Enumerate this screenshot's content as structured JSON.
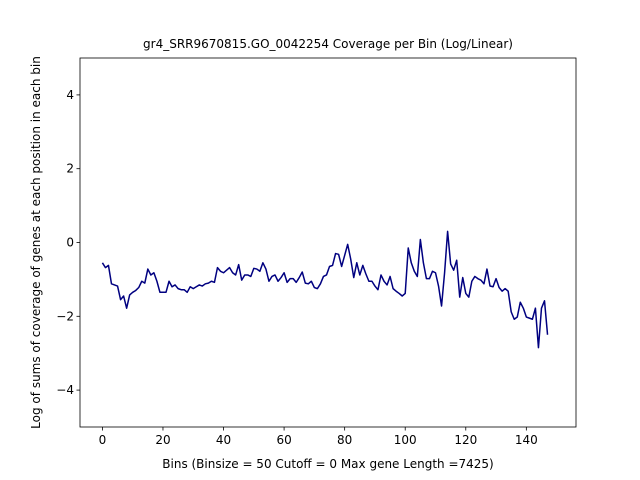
{
  "chart_data": {
    "type": "line",
    "title": "gr4_SRR9670815.GO_0042254 Coverage per Bin (Log/Linear)",
    "xlabel": "Bins  (Binsize = 50 Cutoff = 0 Max gene Length =7425)",
    "ylabel": "Log of sums of coverage of genes at each position in each bin",
    "xlim": [
      -7.4,
      156.4
    ],
    "ylim": [
      -5,
      5
    ],
    "xticks": [
      0,
      20,
      40,
      60,
      80,
      100,
      120,
      140
    ],
    "yticks": [
      -4,
      -2,
      0,
      2,
      4
    ],
    "grid": false,
    "series": [
      {
        "color": "#000080",
        "y": [
          -0.55,
          -0.68,
          -0.62,
          -1.12,
          -1.15,
          -1.18,
          -1.55,
          -1.45,
          -1.78,
          -1.42,
          -1.35,
          -1.3,
          -1.22,
          -1.05,
          -1.1,
          -0.72,
          -0.88,
          -0.82,
          -1.05,
          -1.35,
          -1.35,
          -1.35,
          -1.05,
          -1.2,
          -1.15,
          -1.25,
          -1.28,
          -1.28,
          -1.35,
          -1.2,
          -1.25,
          -1.2,
          -1.15,
          -1.18,
          -1.12,
          -1.1,
          -1.05,
          -1.08,
          -0.68,
          -0.78,
          -0.82,
          -0.75,
          -0.68,
          -0.82,
          -0.88,
          -0.6,
          -1.02,
          -0.88,
          -0.88,
          -0.92,
          -0.7,
          -0.72,
          -0.78,
          -0.55,
          -0.72,
          -1.05,
          -0.92,
          -0.88,
          -1.05,
          -0.95,
          -0.82,
          -1.08,
          -0.98,
          -0.98,
          -1.08,
          -0.95,
          -0.8,
          -1.1,
          -1.12,
          -1.05,
          -1.22,
          -1.25,
          -1.12,
          -0.92,
          -0.88,
          -0.65,
          -0.62,
          -0.3,
          -0.32,
          -0.65,
          -0.35,
          -0.05,
          -0.45,
          -0.95,
          -0.55,
          -0.88,
          -0.62,
          -0.85,
          -1.05,
          -1.05,
          -1.18,
          -1.28,
          -0.88,
          -1.05,
          -1.15,
          -0.92,
          -1.25,
          -1.32,
          -1.38,
          -1.45,
          -1.38,
          -0.15,
          -0.55,
          -0.78,
          -0.92,
          0.08,
          -0.55,
          -0.98,
          -0.98,
          -0.78,
          -0.82,
          -1.18,
          -1.72,
          -0.82,
          0.3,
          -0.58,
          -0.75,
          -0.48,
          -1.48,
          -0.95,
          -1.38,
          -1.48,
          -1.05,
          -0.92,
          -0.98,
          -1.02,
          -1.12,
          -0.72,
          -1.18,
          -1.2,
          -0.98,
          -1.22,
          -1.32,
          -1.25,
          -1.32,
          -1.88,
          -2.08,
          -2.02,
          -1.62,
          -1.78,
          -2.02,
          -2.05,
          -2.08,
          -1.78,
          -2.85,
          -1.78,
          -1.58,
          -2.5
        ]
      }
    ]
  }
}
